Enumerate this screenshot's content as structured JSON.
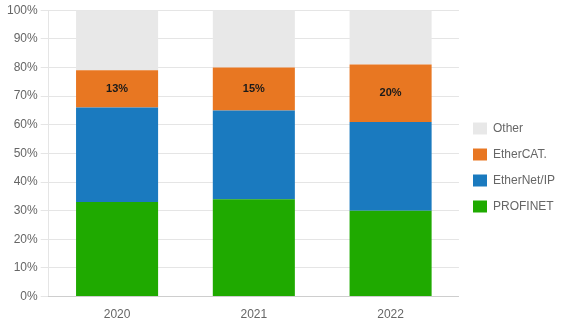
{
  "chart_data": {
    "type": "bar",
    "stacked": true,
    "categories": [
      "2020",
      "2021",
      "2022"
    ],
    "series": [
      {
        "name": "PROFINET",
        "color": "#1faa00",
        "values": [
          33,
          34,
          30
        ]
      },
      {
        "name": "EtherNet/IP",
        "color": "#1a7abf",
        "values": [
          33,
          31,
          31
        ]
      },
      {
        "name": "EtherCAT.",
        "color": "#e87722",
        "values": [
          13,
          15,
          20
        ],
        "data_labels": true,
        "value_labels": [
          "13%",
          "15%",
          "20%"
        ]
      },
      {
        "name": "Other",
        "color": "#e8e8e8",
        "values": [
          21,
          20,
          19
        ]
      }
    ],
    "ylim": [
      0,
      100
    ],
    "yticks": [
      {
        "value": 0,
        "label": "0%"
      },
      {
        "value": 10,
        "label": "10%"
      },
      {
        "value": 20,
        "label": "20%"
      },
      {
        "value": 30,
        "label": "30%"
      },
      {
        "value": 40,
        "label": "40%"
      },
      {
        "value": 50,
        "label": "50%"
      },
      {
        "value": 60,
        "label": "60%"
      },
      {
        "value": 70,
        "label": "70%"
      },
      {
        "value": 80,
        "label": "80%"
      },
      {
        "value": 90,
        "label": "90%"
      },
      {
        "value": 100,
        "label": "100%"
      }
    ],
    "grid": true,
    "legend": "right"
  }
}
